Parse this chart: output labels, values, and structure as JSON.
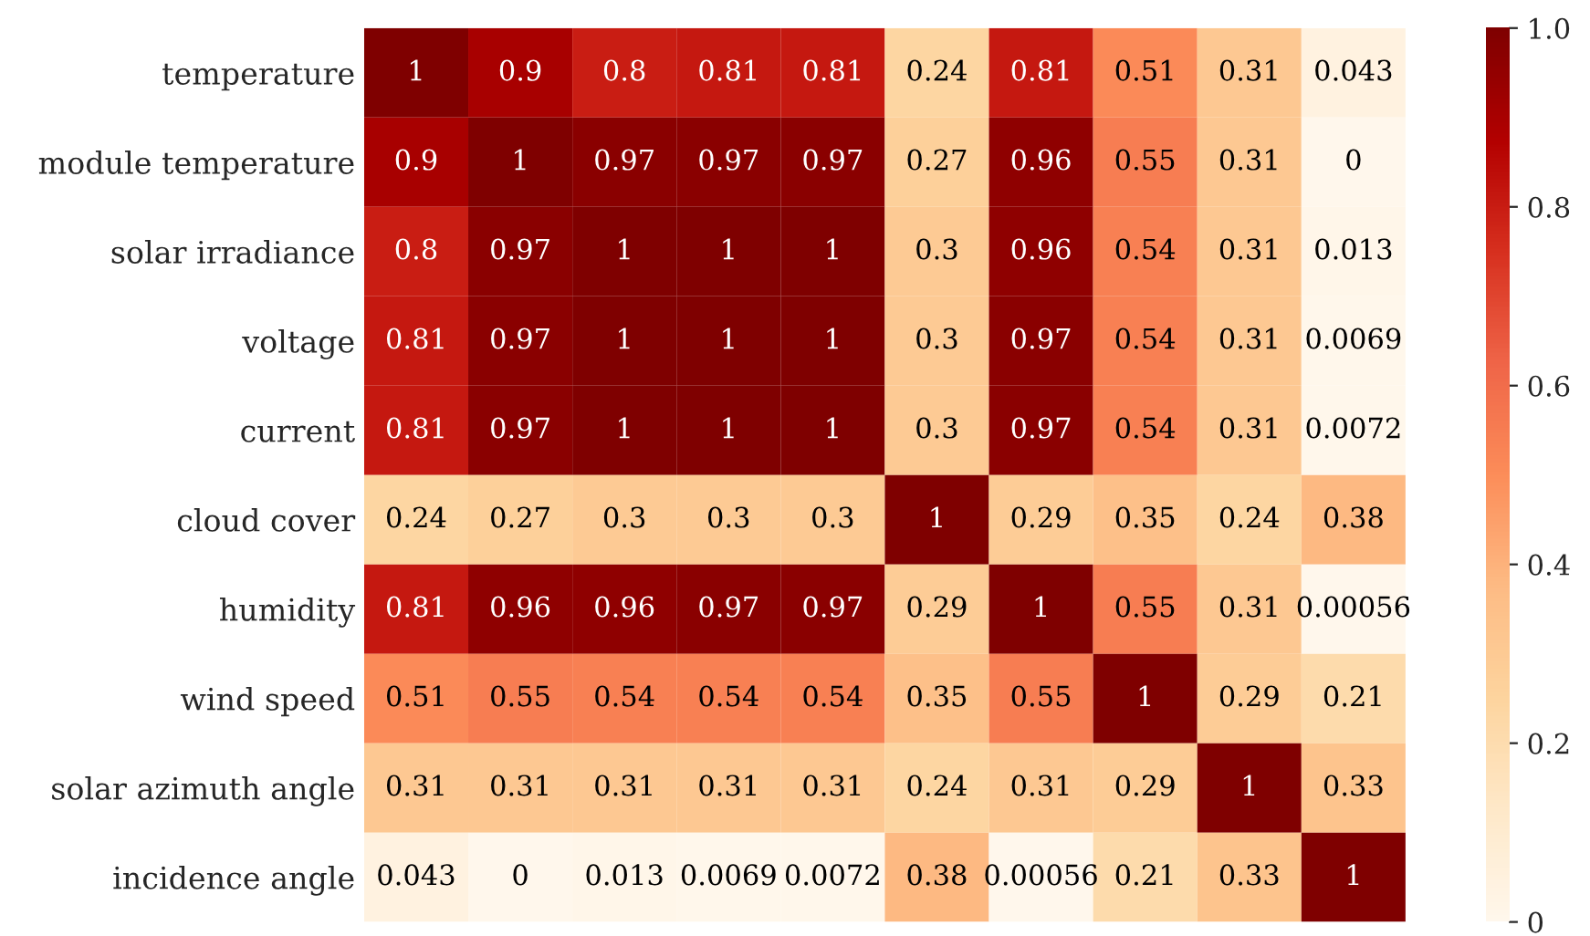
{
  "chart_data": {
    "type": "heatmap",
    "categories": [
      null,
      null,
      null,
      null,
      null,
      null,
      null,
      null,
      null,
      null
    ],
    "y_categories": [
      "temperature",
      "module temperature",
      "solar irradiance",
      "voltage",
      "current",
      "cloud cover",
      "humidity",
      "wind speed",
      "solar azimuth angle",
      "incidence angle"
    ],
    "cells": [
      [
        1,
        0.9,
        0.8,
        0.81,
        0.81,
        0.24,
        0.81,
        0.51,
        0.31,
        0.043
      ],
      [
        0.9,
        1,
        0.97,
        0.97,
        0.97,
        0.27,
        0.96,
        0.55,
        0.31,
        0
      ],
      [
        0.8,
        0.97,
        1,
        1,
        1,
        0.3,
        0.96,
        0.54,
        0.31,
        0.013
      ],
      [
        0.81,
        0.97,
        1,
        1,
        1,
        0.3,
        0.97,
        0.54,
        0.31,
        0.0069
      ],
      [
        0.81,
        0.97,
        1,
        1,
        1,
        0.3,
        0.97,
        0.54,
        0.31,
        0.0072
      ],
      [
        0.24,
        0.27,
        0.3,
        0.3,
        0.3,
        1,
        0.29,
        0.35,
        0.24,
        0.38
      ],
      [
        0.81,
        0.96,
        0.96,
        0.97,
        0.97,
        0.29,
        1,
        0.55,
        0.31,
        0.00056
      ],
      [
        0.51,
        0.55,
        0.54,
        0.54,
        0.54,
        0.35,
        0.55,
        1,
        0.29,
        0.21
      ],
      [
        0.31,
        0.31,
        0.31,
        0.31,
        0.31,
        0.24,
        0.31,
        0.29,
        1,
        0.33
      ],
      [
        0.043,
        0,
        0.013,
        0.0069,
        0.0072,
        0.38,
        0.00056,
        0.21,
        0.33,
        1
      ]
    ],
    "clim": [
      0,
      1
    ],
    "cticks": [
      0,
      0.2,
      0.4,
      0.6,
      0.8,
      {
        "value": 1,
        "label": "1.0"
      }
    ],
    "data_labels": true
  }
}
